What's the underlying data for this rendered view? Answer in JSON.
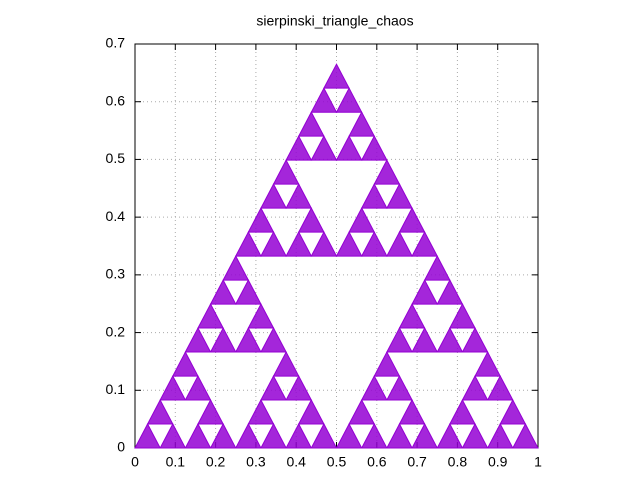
{
  "chart_data": {
    "type": "scatter",
    "title": "sierpinski_triangle_chaos",
    "x": [
      0.03125,
      0.09375,
      0.15625,
      0.21875,
      0.28125,
      0.34375,
      0.40625,
      0.46875,
      0.53125,
      0.59375,
      0.65625,
      0.71875,
      0.78125,
      0.84375,
      0.90625,
      0.96875,
      0.0625,
      0.1875,
      0.3125,
      0.4375,
      0.5625,
      0.6875,
      0.8125,
      0.9375,
      0.09375,
      0.15625,
      0.34375,
      0.40625,
      0.59375,
      0.65625,
      0.84375,
      0.90625,
      0.125,
      0.375,
      0.625,
      0.875,
      0.15625,
      0.21875,
      0.28125,
      0.34375,
      0.65625,
      0.71875,
      0.78125,
      0.84375,
      0.1875,
      0.3125,
      0.6875,
      0.8125,
      0.21875,
      0.28125,
      0.71875,
      0.78125,
      0.25,
      0.75,
      0.28125,
      0.34375,
      0.40625,
      0.46875,
      0.53125,
      0.59375,
      0.65625,
      0.71875,
      0.3125,
      0.4375,
      0.5625,
      0.6875,
      0.34375,
      0.40625,
      0.59375,
      0.65625,
      0.375,
      0.625,
      0.40625,
      0.46875,
      0.53125,
      0.59375,
      0.4375,
      0.5625,
      0.46875,
      0.53125,
      0.5
    ],
    "values": [
      0.0139,
      0.0139,
      0.0139,
      0.0139,
      0.0139,
      0.0139,
      0.0139,
      0.0139,
      0.0139,
      0.0139,
      0.0139,
      0.0139,
      0.0139,
      0.0139,
      0.0139,
      0.0139,
      0.0554,
      0.0554,
      0.0554,
      0.0554,
      0.0554,
      0.0554,
      0.0554,
      0.0554,
      0.097,
      0.097,
      0.097,
      0.097,
      0.097,
      0.097,
      0.097,
      0.097,
      0.1385,
      0.1385,
      0.1385,
      0.1385,
      0.1801,
      0.1801,
      0.1801,
      0.1801,
      0.1801,
      0.1801,
      0.1801,
      0.1801,
      0.2217,
      0.2217,
      0.2217,
      0.2217,
      0.2632,
      0.2632,
      0.2632,
      0.2632,
      0.3048,
      0.3048,
      0.3464,
      0.3464,
      0.3464,
      0.3464,
      0.3464,
      0.3464,
      0.3464,
      0.3464,
      0.3879,
      0.3879,
      0.3879,
      0.3879,
      0.4295,
      0.4295,
      0.4295,
      0.4295,
      0.471,
      0.471,
      0.5126,
      0.5126,
      0.5126,
      0.5126,
      0.5542,
      0.5542,
      0.5957,
      0.5957,
      0.6373
    ],
    "color": "#9400d3",
    "xlim": [
      0,
      1
    ],
    "xticks": [
      0,
      0.1,
      0.2,
      0.3,
      0.4,
      0.5,
      0.6,
      0.7,
      0.8,
      0.9,
      1
    ],
    "ylim": [
      0,
      0.7
    ],
    "yticks": [
      0,
      0.1,
      0.2,
      0.3,
      0.4,
      0.5,
      0.6,
      0.7
    ],
    "grid": true
  }
}
